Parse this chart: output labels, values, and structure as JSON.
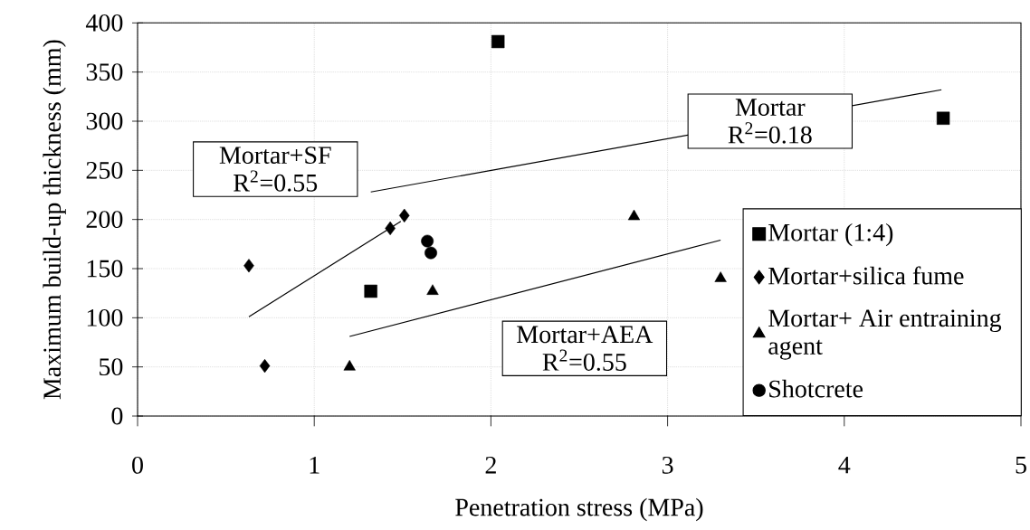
{
  "chart_data": {
    "type": "scatter",
    "xlabel": "Penetration stress (MPa)",
    "ylabel": "Maximum build-up thickness (mm)",
    "xlim": [
      0,
      5
    ],
    "ylim": [
      0,
      400
    ],
    "xticks": [
      0,
      1,
      2,
      3,
      4,
      5
    ],
    "yticks": [
      0,
      50,
      100,
      150,
      200,
      250,
      300,
      350,
      400
    ],
    "grid": true,
    "legend": "right",
    "series": [
      {
        "name": "Mortar (1:4)",
        "color": "#000000",
        "marker": "square",
        "x": [
          1.32,
          2.04,
          4.56
        ],
        "values": [
          127,
          381,
          303
        ]
      },
      {
        "name": "Mortar+silica fume",
        "color": "#000000",
        "marker": "diamond",
        "x": [
          0.63,
          0.72,
          1.43,
          1.51
        ],
        "values": [
          153,
          51,
          191,
          204
        ]
      },
      {
        "name": "Mortar+ Air entraining agent",
        "color": "#000000",
        "marker": "triangle",
        "x": [
          1.2,
          1.67,
          2.81,
          3.3
        ],
        "values": [
          50,
          127,
          203,
          140
        ]
      },
      {
        "name": "Shotcrete",
        "color": "#000000",
        "marker": "circle",
        "x": [
          1.64,
          1.66
        ],
        "values": [
          178,
          166
        ]
      },
      {
        "type": "line",
        "color": "#000000",
        "marker": "none",
        "x": [
          1.32,
          4.55
        ],
        "values": [
          228,
          332
        ]
      },
      {
        "type": "line",
        "color": "#000000",
        "marker": "none",
        "x": [
          0.63,
          1.49
        ],
        "values": [
          101,
          198
        ]
      },
      {
        "type": "line",
        "color": "#000000",
        "marker": "none",
        "x": [
          1.2,
          3.3
        ],
        "values": [
          81,
          179
        ]
      }
    ],
    "annotations": [
      {
        "text": "Mortar R$^{2}$=0.18",
        "x": 3.58,
        "y": 300
      },
      "Mortar+SF R$^{2}$=0.55",
      "Mortar+AEA R$^{2}$=0.55"
    ]
  }
}
